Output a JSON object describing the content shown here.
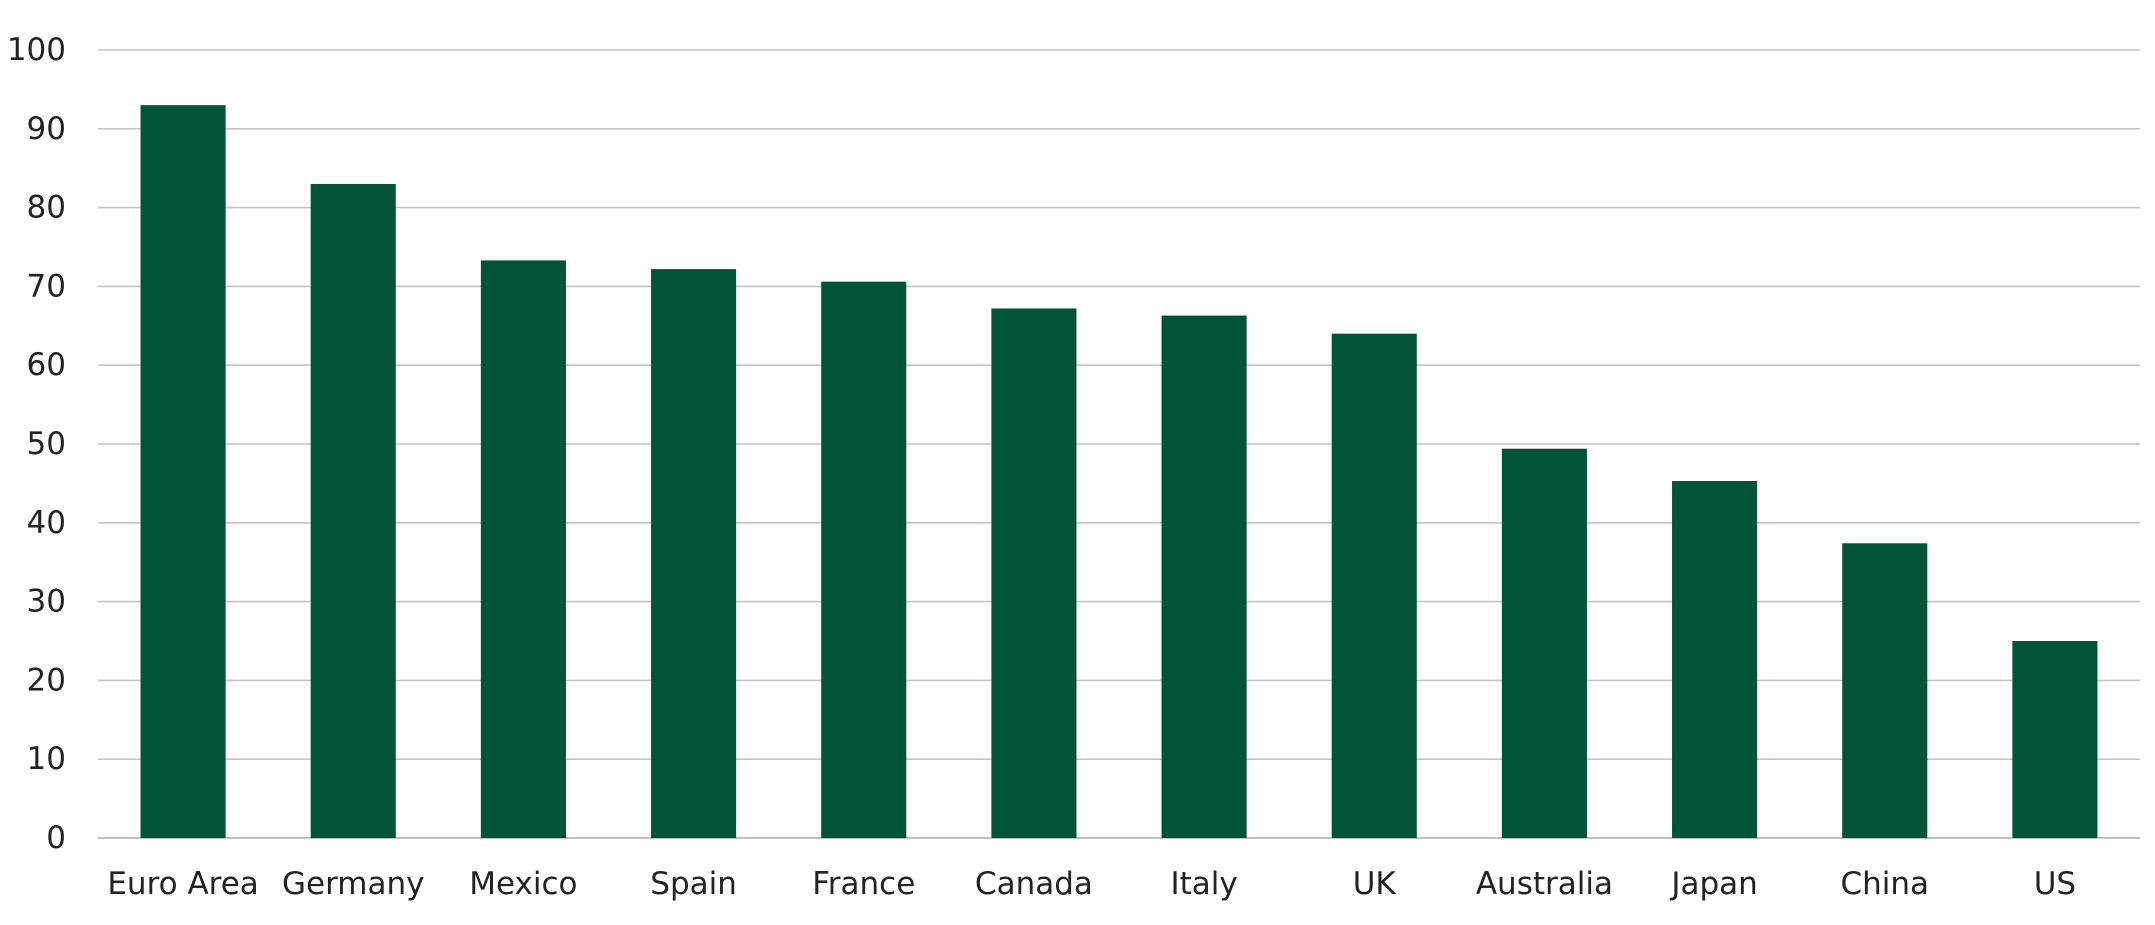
{
  "chart_data": {
    "type": "bar",
    "title": "",
    "xlabel": "",
    "ylabel": "",
    "categories": [
      "Euro Area",
      "Germany",
      "Mexico",
      "Spain",
      "France",
      "Canada",
      "Italy",
      "UK",
      "Australia",
      "Japan",
      "China",
      "US"
    ],
    "values": [
      93,
      83,
      73.3,
      72.2,
      70.6,
      67.2,
      66.3,
      64,
      49.4,
      45.3,
      37.4,
      25
    ],
    "ylim": [
      0,
      100
    ],
    "yticks": [
      "0",
      "10",
      "20",
      "30",
      "40",
      "50",
      "60",
      "70",
      "80",
      "90",
      "100"
    ],
    "grid": true,
    "legend": "none",
    "bar_color": "#015536"
  }
}
